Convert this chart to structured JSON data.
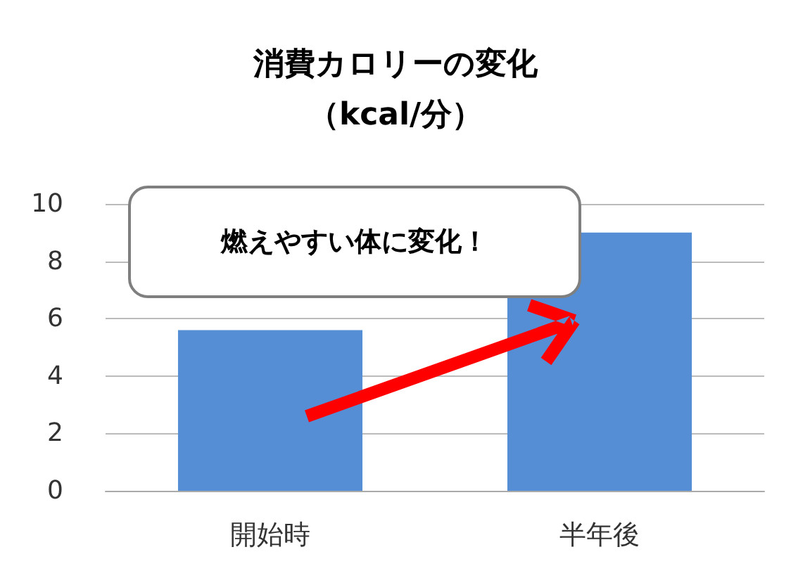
{
  "chart_data": {
    "type": "bar",
    "title": "消費カロリーの変化",
    "subtitle": "（kcal/分）",
    "categories": [
      "開始時",
      "半年後"
    ],
    "values": [
      5.6,
      9.0
    ],
    "color": "#558ed5",
    "ylim": [
      0,
      10
    ],
    "yticks": [
      0,
      2,
      4,
      6,
      8,
      10
    ],
    "grid": "y",
    "annotations": [
      "燃えやすい体に変化！"
    ]
  }
}
